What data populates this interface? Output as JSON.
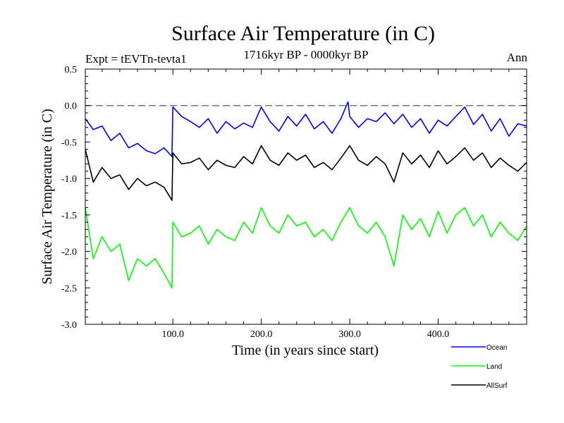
{
  "chart_data": {
    "type": "line",
    "title": "Surface Air Temperature (in C)",
    "subtitle": "1716kyr BP - 0000kyr BP",
    "experiment_label": "Expt = tEVTn-tevta1",
    "season_label": "Ann",
    "xlabel": "Time (in years since start)",
    "ylabel": "Surface Air Temperature (in C)",
    "xlim": [
      1,
      500
    ],
    "ylim": [
      -3.0,
      0.5
    ],
    "x_ticks": [
      {
        "value": 100,
        "label": "100.0"
      },
      {
        "value": 200,
        "label": "200.0"
      },
      {
        "value": 300,
        "label": "300.0"
      },
      {
        "value": 400,
        "label": "400.0"
      }
    ],
    "y_ticks": [
      {
        "value": 0.5,
        "label": "0.5"
      },
      {
        "value": 0.0,
        "label": "0.0"
      },
      {
        "value": -0.5,
        "label": "-0.5"
      },
      {
        "value": -1.0,
        "label": "-1.0"
      },
      {
        "value": -1.5,
        "label": "-1.5"
      },
      {
        "value": -2.0,
        "label": "-2.0"
      },
      {
        "value": -2.5,
        "label": "-2.5"
      },
      {
        "value": -3.0,
        "label": "-3.0"
      }
    ],
    "reference_line": {
      "value": 0.0,
      "style": "dashed"
    },
    "grid": false,
    "legend_position": "bottom-right",
    "series": [
      {
        "name": "Ocean",
        "color": "#0000ff",
        "x": [
          1,
          10,
          20,
          30,
          40,
          50,
          60,
          70,
          80,
          90,
          99,
          100,
          110,
          120,
          130,
          140,
          150,
          160,
          170,
          180,
          190,
          200,
          210,
          220,
          230,
          240,
          250,
          260,
          270,
          280,
          290,
          298,
          300,
          310,
          320,
          330,
          340,
          350,
          360,
          370,
          380,
          390,
          400,
          410,
          420,
          430,
          440,
          450,
          460,
          470,
          480,
          490,
          500
        ],
        "values": [
          -0.18,
          -0.33,
          -0.28,
          -0.48,
          -0.38,
          -0.58,
          -0.52,
          -0.62,
          -0.66,
          -0.58,
          -0.7,
          -0.02,
          -0.15,
          -0.22,
          -0.3,
          -0.18,
          -0.38,
          -0.22,
          -0.32,
          -0.24,
          -0.3,
          -0.02,
          -0.22,
          -0.35,
          -0.15,
          -0.28,
          -0.12,
          -0.32,
          -0.22,
          -0.38,
          -0.18,
          0.05,
          -0.15,
          -0.3,
          -0.18,
          -0.22,
          -0.1,
          -0.25,
          -0.12,
          -0.3,
          -0.18,
          -0.38,
          -0.2,
          -0.28,
          -0.15,
          -0.02,
          -0.26,
          -0.12,
          -0.35,
          -0.18,
          -0.42,
          -0.25,
          -0.28
        ]
      },
      {
        "name": "Land",
        "color": "#00ff00",
        "x": [
          1,
          10,
          20,
          30,
          40,
          50,
          60,
          70,
          80,
          90,
          99,
          100,
          110,
          120,
          130,
          140,
          150,
          160,
          170,
          180,
          190,
          200,
          210,
          220,
          230,
          240,
          250,
          260,
          270,
          280,
          290,
          300,
          310,
          320,
          330,
          340,
          350,
          360,
          370,
          380,
          390,
          400,
          410,
          420,
          430,
          440,
          450,
          460,
          470,
          480,
          490,
          500
        ],
        "values": [
          -1.4,
          -2.1,
          -1.8,
          -2.0,
          -1.9,
          -2.4,
          -2.1,
          -2.2,
          -2.1,
          -2.3,
          -2.5,
          -1.6,
          -1.8,
          -1.75,
          -1.65,
          -1.9,
          -1.7,
          -1.8,
          -1.85,
          -1.6,
          -1.75,
          -1.4,
          -1.65,
          -1.75,
          -1.5,
          -1.65,
          -1.6,
          -1.8,
          -1.7,
          -1.85,
          -1.6,
          -1.4,
          -1.65,
          -1.75,
          -1.6,
          -1.8,
          -2.2,
          -1.5,
          -1.7,
          -1.55,
          -1.8,
          -1.45,
          -1.75,
          -1.5,
          -1.4,
          -1.65,
          -1.5,
          -1.8,
          -1.6,
          -1.75,
          -1.85,
          -1.65
        ]
      },
      {
        "name": "AllSurf",
        "color": "#000000",
        "x": [
          1,
          10,
          20,
          30,
          40,
          50,
          60,
          70,
          80,
          90,
          99,
          100,
          110,
          120,
          130,
          140,
          150,
          160,
          170,
          180,
          190,
          200,
          210,
          220,
          230,
          240,
          250,
          260,
          270,
          280,
          290,
          300,
          310,
          320,
          330,
          340,
          350,
          360,
          370,
          380,
          390,
          400,
          410,
          420,
          430,
          440,
          450,
          460,
          470,
          480,
          490,
          500
        ],
        "values": [
          -0.6,
          -1.05,
          -0.85,
          -1.0,
          -0.95,
          -1.15,
          -1.0,
          -1.1,
          -1.05,
          -1.12,
          -1.3,
          -0.65,
          -0.8,
          -0.78,
          -0.72,
          -0.88,
          -0.75,
          -0.82,
          -0.85,
          -0.7,
          -0.8,
          -0.55,
          -0.75,
          -0.82,
          -0.65,
          -0.75,
          -0.68,
          -0.85,
          -0.78,
          -0.88,
          -0.72,
          -0.55,
          -0.75,
          -0.82,
          -0.7,
          -0.8,
          -1.05,
          -0.65,
          -0.8,
          -0.68,
          -0.85,
          -0.62,
          -0.8,
          -0.7,
          -0.58,
          -0.75,
          -0.65,
          -0.85,
          -0.72,
          -0.82,
          -0.9,
          -0.78
        ]
      }
    ]
  }
}
